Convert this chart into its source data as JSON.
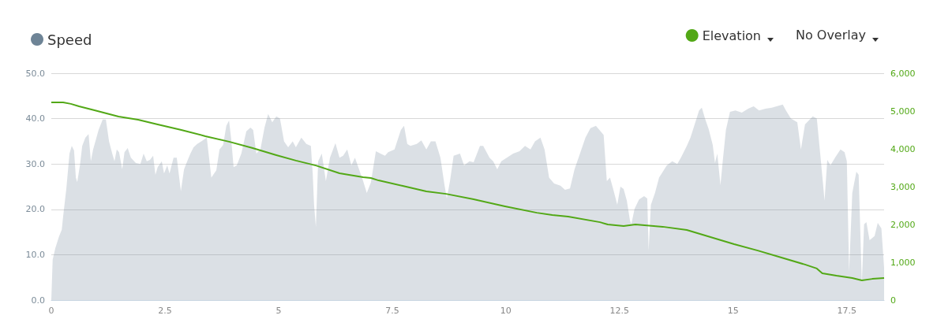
{
  "chart_data": {
    "type": "area",
    "legend": "top",
    "grid": "y",
    "annotations": [
      "No Overlay"
    ],
    "xlim": [
      0,
      18.32
    ],
    "xticks": [
      0,
      2.5,
      5,
      7.5,
      10,
      12.5,
      15,
      17.5
    ],
    "ylim": [
      0,
      50
    ],
    "yticks": [
      {
        "value": 0,
        "label": "0.0"
      },
      {
        "value": 10,
        "label": "10.0"
      },
      {
        "value": 20,
        "label": "20.0"
      },
      {
        "value": 30,
        "label": "30.0"
      },
      {
        "value": 40,
        "label": "40.0"
      },
      {
        "value": 50,
        "label": "50.0"
      }
    ],
    "y2lim": [
      0,
      6000
    ],
    "y2ticks": [
      0,
      {
        "value": 1000,
        "label": "1,000"
      },
      {
        "value": 2000,
        "label": "2,000"
      },
      {
        "value": 3000,
        "label": "3,000"
      },
      {
        "value": 4000,
        "label": "4,000"
      },
      {
        "value": 5000,
        "label": "5,000"
      },
      {
        "value": 6000,
        "label": "6,000"
      }
    ],
    "series": [
      {
        "name": "Speed",
        "color": "#6e8496",
        "x": [
          0,
          0.03,
          0.09,
          0.17,
          0.23,
          0.26,
          0.33,
          0.4,
          0.45,
          0.5,
          0.54,
          0.57,
          0.63,
          0.68,
          0.75,
          0.82,
          0.87,
          0.92,
          0.97,
          1.04,
          1.13,
          1.2,
          1.27,
          1.34,
          1.39,
          1.44,
          1.49,
          1.56,
          1.61,
          1.68,
          1.75,
          1.86,
          1.96,
          2.03,
          2.1,
          2.17,
          2.24,
          2.29,
          2.34,
          2.43,
          2.48,
          2.55,
          2.6,
          2.69,
          2.76,
          2.85,
          2.92,
          2.99,
          3.06,
          3.13,
          3.21,
          3.3,
          3.42,
          3.52,
          3.63,
          3.7,
          3.78,
          3.85,
          3.91,
          3.96,
          4.01,
          4.08,
          4.18,
          4.29,
          4.38,
          4.44,
          4.51,
          4.6,
          4.69,
          4.77,
          4.86,
          4.95,
          5.03,
          5.12,
          5.21,
          5.31,
          5.38,
          5.5,
          5.61,
          5.71,
          5.75,
          5.78,
          5.82,
          5.87,
          5.95,
          6.04,
          6.13,
          6.25,
          6.34,
          6.42,
          6.51,
          6.6,
          6.68,
          6.77,
          6.86,
          6.94,
          7.03,
          7.14,
          7.24,
          7.34,
          7.41,
          7.55,
          7.69,
          7.76,
          7.83,
          7.9,
          8.04,
          8.14,
          8.25,
          8.35,
          8.45,
          8.56,
          8.65,
          8.7,
          8.77,
          8.85,
          8.99,
          9.08,
          9.2,
          9.29,
          9.43,
          9.5,
          9.64,
          9.72,
          9.81,
          9.9,
          10.02,
          10.16,
          10.3,
          10.42,
          10.54,
          10.64,
          10.76,
          10.85,
          10.95,
          11.06,
          11.2,
          11.3,
          11.41,
          11.51,
          11.63,
          11.75,
          11.86,
          11.98,
          12.15,
          12.22,
          12.29,
          12.36,
          12.45,
          12.52,
          12.59,
          12.66,
          12.73,
          12.76,
          12.83,
          12.93,
          13.04,
          13.11,
          13.14,
          13.19,
          13.28,
          13.37,
          13.54,
          13.66,
          13.77,
          13.85,
          13.98,
          14.06,
          14.18,
          14.25,
          14.31,
          14.38,
          14.46,
          14.55,
          14.6,
          14.65,
          14.72,
          14.77,
          14.84,
          14.93,
          15.05,
          15.19,
          15.33,
          15.45,
          15.57,
          15.71,
          15.85,
          16.09,
          16.16,
          16.27,
          16.41,
          16.49,
          16.58,
          16.75,
          16.84,
          16.93,
          17.01,
          17.07,
          17.14,
          17.24,
          17.36,
          17.45,
          17.5,
          17.55,
          17.62,
          17.71,
          17.76,
          17.83,
          17.88,
          17.93,
          18,
          18.11,
          18.18,
          18.26,
          18.32
        ],
        "values": [
          0,
          8.9,
          11.5,
          14,
          15.5,
          18.4,
          24.5,
          32.3,
          34,
          33,
          27,
          26,
          29.7,
          34,
          35.8,
          36.6,
          30.6,
          33.2,
          35,
          37.5,
          39.8,
          39.8,
          35,
          32.3,
          30.6,
          33.2,
          32.6,
          28.8,
          32.6,
          33.5,
          31.4,
          30.2,
          30,
          32.3,
          30.6,
          30.9,
          31.8,
          27.6,
          29.3,
          30.6,
          27.9,
          29.7,
          27.9,
          31.4,
          31.4,
          24,
          28.8,
          30.6,
          32.3,
          33.7,
          34.4,
          35,
          35.8,
          27,
          28.6,
          33.2,
          34.2,
          38.4,
          39.6,
          35.2,
          29.3,
          29.7,
          32.3,
          37.2,
          38,
          37.5,
          32.3,
          33.2,
          38,
          41,
          39.2,
          40.5,
          40,
          35,
          33.7,
          35,
          33.7,
          35.8,
          34.4,
          34,
          27.9,
          21,
          16.1,
          30.6,
          32.3,
          26.2,
          31.4,
          34.6,
          31.4,
          31.8,
          33.2,
          29.7,
          31.4,
          28.8,
          26.2,
          23.6,
          25.9,
          32.8,
          32.3,
          31.8,
          32.6,
          33.2,
          37.5,
          38.4,
          34.4,
          34,
          34.4,
          35.2,
          33.2,
          35,
          35,
          31.4,
          25.3,
          22.4,
          26.2,
          31.8,
          32.3,
          29.7,
          30.6,
          30.4,
          34,
          34,
          31.4,
          30.6,
          28.8,
          30.6,
          31.4,
          32.3,
          32.8,
          34,
          33.2,
          35,
          35.8,
          33.2,
          27,
          25.7,
          25.2,
          24.3,
          24.6,
          28.8,
          32.3,
          35.8,
          37.9,
          38.4,
          36.4,
          26.2,
          27,
          24.5,
          21,
          25,
          24.5,
          21.9,
          17.5,
          16.7,
          20.1,
          22.2,
          22.9,
          22.4,
          10.9,
          21,
          23.6,
          27,
          29.7,
          30.6,
          30,
          31.4,
          34,
          35.8,
          39.6,
          41.8,
          42.4,
          40,
          37.7,
          34.2,
          30.2,
          32.3,
          25.3,
          30.6,
          37.5,
          41.5,
          41.8,
          41.3,
          42.2,
          42.7,
          41.8,
          42.2,
          42.4,
          43.1,
          41.8,
          40,
          39.2,
          33.2,
          38.7,
          40.5,
          40,
          30.6,
          21.9,
          30.9,
          29.7,
          31.4,
          33.2,
          32.6,
          30.6,
          6.2,
          23.6,
          28.3,
          27.6,
          3.6,
          16.7,
          17.2,
          13.2,
          14.1,
          17,
          15.8,
          7.1
        ]
      },
      {
        "name": "Elevation",
        "type": "line",
        "axis": "y2",
        "color": "#52a816",
        "x": [
          0,
          0.26,
          0.43,
          0.61,
          0.95,
          1.48,
          1.91,
          2.34,
          2.86,
          3.39,
          3.91,
          4.43,
          4.95,
          5.38,
          5.82,
          6.34,
          6.86,
          7.03,
          7.2,
          7.73,
          8.25,
          8.68,
          9.29,
          9.98,
          10.68,
          11.02,
          11.37,
          12.07,
          12.24,
          12.59,
          12.85,
          13.45,
          13.98,
          14.5,
          15.02,
          15.54,
          16.06,
          16.58,
          16.84,
          16.96,
          17.27,
          17.62,
          17.83,
          18.06,
          18.32
        ],
        "values": [
          5230,
          5230,
          5190,
          5125,
          5020,
          4855,
          4770,
          4645,
          4500,
          4335,
          4190,
          4020,
          3835,
          3690,
          3560,
          3355,
          3250,
          3230,
          3165,
          3020,
          2875,
          2810,
          2665,
          2480,
          2310,
          2250,
          2210,
          2060,
          2000,
          1960,
          2000,
          1940,
          1855,
          1665,
          1480,
          1310,
          1125,
          940,
          835,
          710,
          645,
          585,
          520,
          560,
          585
        ]
      }
    ]
  }
}
